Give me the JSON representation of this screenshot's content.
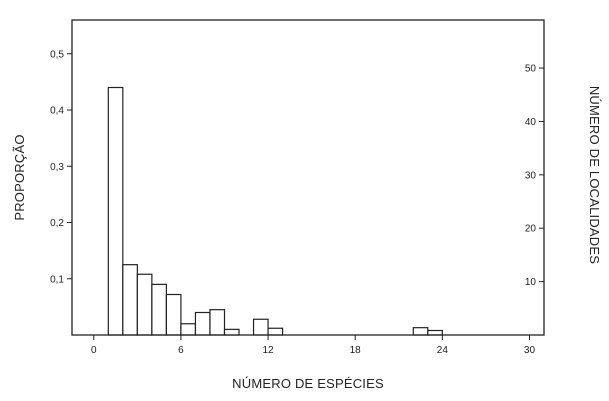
{
  "chart_data": {
    "type": "bar",
    "title": "",
    "xlabel": "NÚMERO DE ESPÉCIES",
    "ylabel": "PROPORÇÃO",
    "y2label": "NÚMERO DE LOCALIDADES",
    "xlim": [
      -1.5,
      31
    ],
    "ylim": [
      0,
      0.56
    ],
    "y2lim": [
      0,
      59
    ],
    "x_ticks": [
      0,
      6,
      12,
      18,
      24,
      30
    ],
    "x_tick_labels": [
      "0",
      "6",
      "12",
      "18",
      "24",
      "30"
    ],
    "y_ticks": [
      0.1,
      0.2,
      0.3,
      0.4,
      0.5
    ],
    "y_tick_labels": [
      "0,1",
      "0,2",
      "0,3",
      "0,4",
      "0,5"
    ],
    "y2_ticks": [
      10,
      20,
      30,
      40,
      50
    ],
    "y2_tick_labels": [
      "10",
      "20",
      "30",
      "40",
      "50"
    ],
    "grid": false,
    "bin_width": 1,
    "bins": [
      {
        "x0": 1,
        "x1": 2,
        "value": 0.44
      },
      {
        "x0": 2,
        "x1": 3,
        "value": 0.125
      },
      {
        "x0": 3,
        "x1": 4,
        "value": 0.108
      },
      {
        "x0": 4,
        "x1": 5,
        "value": 0.09
      },
      {
        "x0": 5,
        "x1": 6,
        "value": 0.072
      },
      {
        "x0": 6,
        "x1": 7,
        "value": 0.02
      },
      {
        "x0": 7,
        "x1": 8,
        "value": 0.04
      },
      {
        "x0": 8,
        "x1": 9,
        "value": 0.045
      },
      {
        "x0": 9,
        "x1": 10,
        "value": 0.01
      },
      {
        "x0": 11,
        "x1": 12,
        "value": 0.028
      },
      {
        "x0": 12,
        "x1": 13,
        "value": 0.012
      },
      {
        "x0": 22,
        "x1": 23,
        "value": 0.013
      },
      {
        "x0": 23,
        "x1": 24,
        "value": 0.008
      }
    ]
  }
}
